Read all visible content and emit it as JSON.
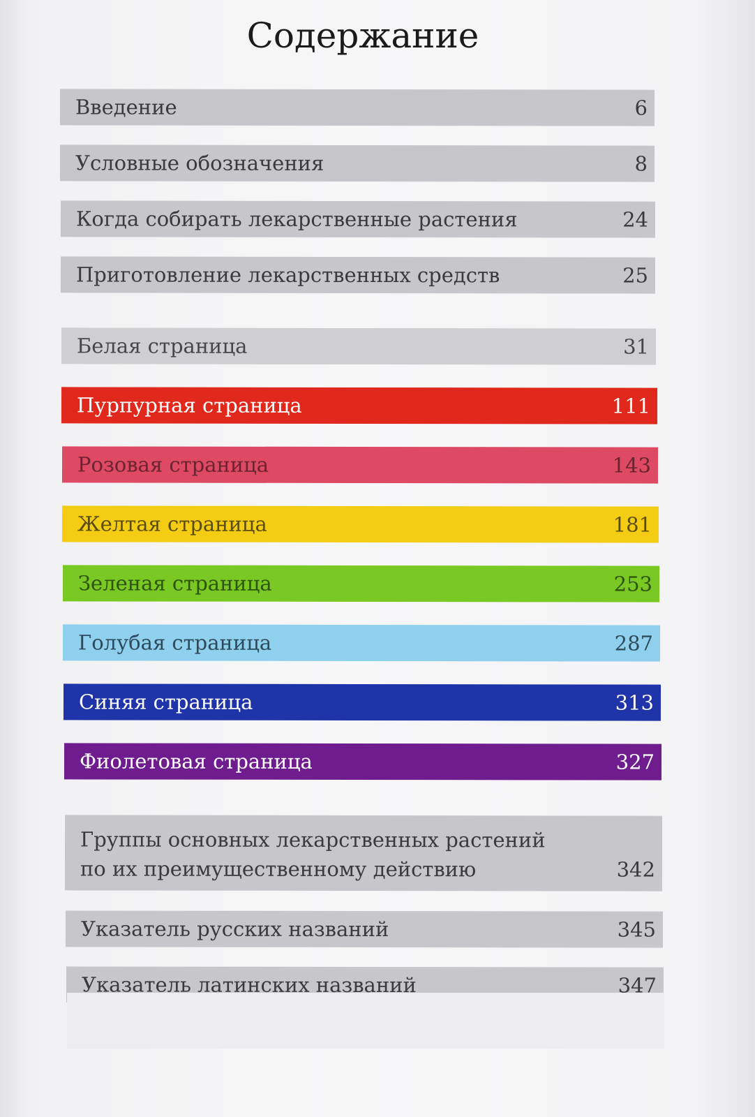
{
  "title": "Содержание",
  "entries": [
    {
      "label": "Введение",
      "page": "6"
    },
    {
      "label": "Условные обозначения",
      "page": "8"
    },
    {
      "label": "Когда собирать лекарственные растения",
      "page": "24"
    },
    {
      "label": "Приготовление лекарственных средств",
      "page": "25"
    },
    {
      "label": "Белая страница",
      "page": "31"
    },
    {
      "label": "Пурпурная страница",
      "page": "111"
    },
    {
      "label": "Розовая страница",
      "page": "143"
    },
    {
      "label": "Желтая страница",
      "page": "181"
    },
    {
      "label": "Зеленая страница",
      "page": "253"
    },
    {
      "label": "Голубая страница",
      "page": "287"
    },
    {
      "label": "Синяя страница",
      "page": "313"
    },
    {
      "label": "Фиолетовая страница",
      "page": "327"
    },
    {
      "label_line1": "Группы основных лекарственных растений",
      "label_line2": "по их преимущественному действию",
      "page": "342"
    },
    {
      "label": "Указатель русских названий",
      "page": "345"
    },
    {
      "label": "Указатель латинских названий",
      "page": "347"
    }
  ],
  "colors": {
    "gray": "#c7c7cb",
    "red": "#e0281c",
    "pink": "#de4a63",
    "yellow": "#f4cc14",
    "green": "#79c823",
    "lightblue": "#8fd0ee",
    "blue": "#1f34a8",
    "purple": "#6e1c8e"
  }
}
